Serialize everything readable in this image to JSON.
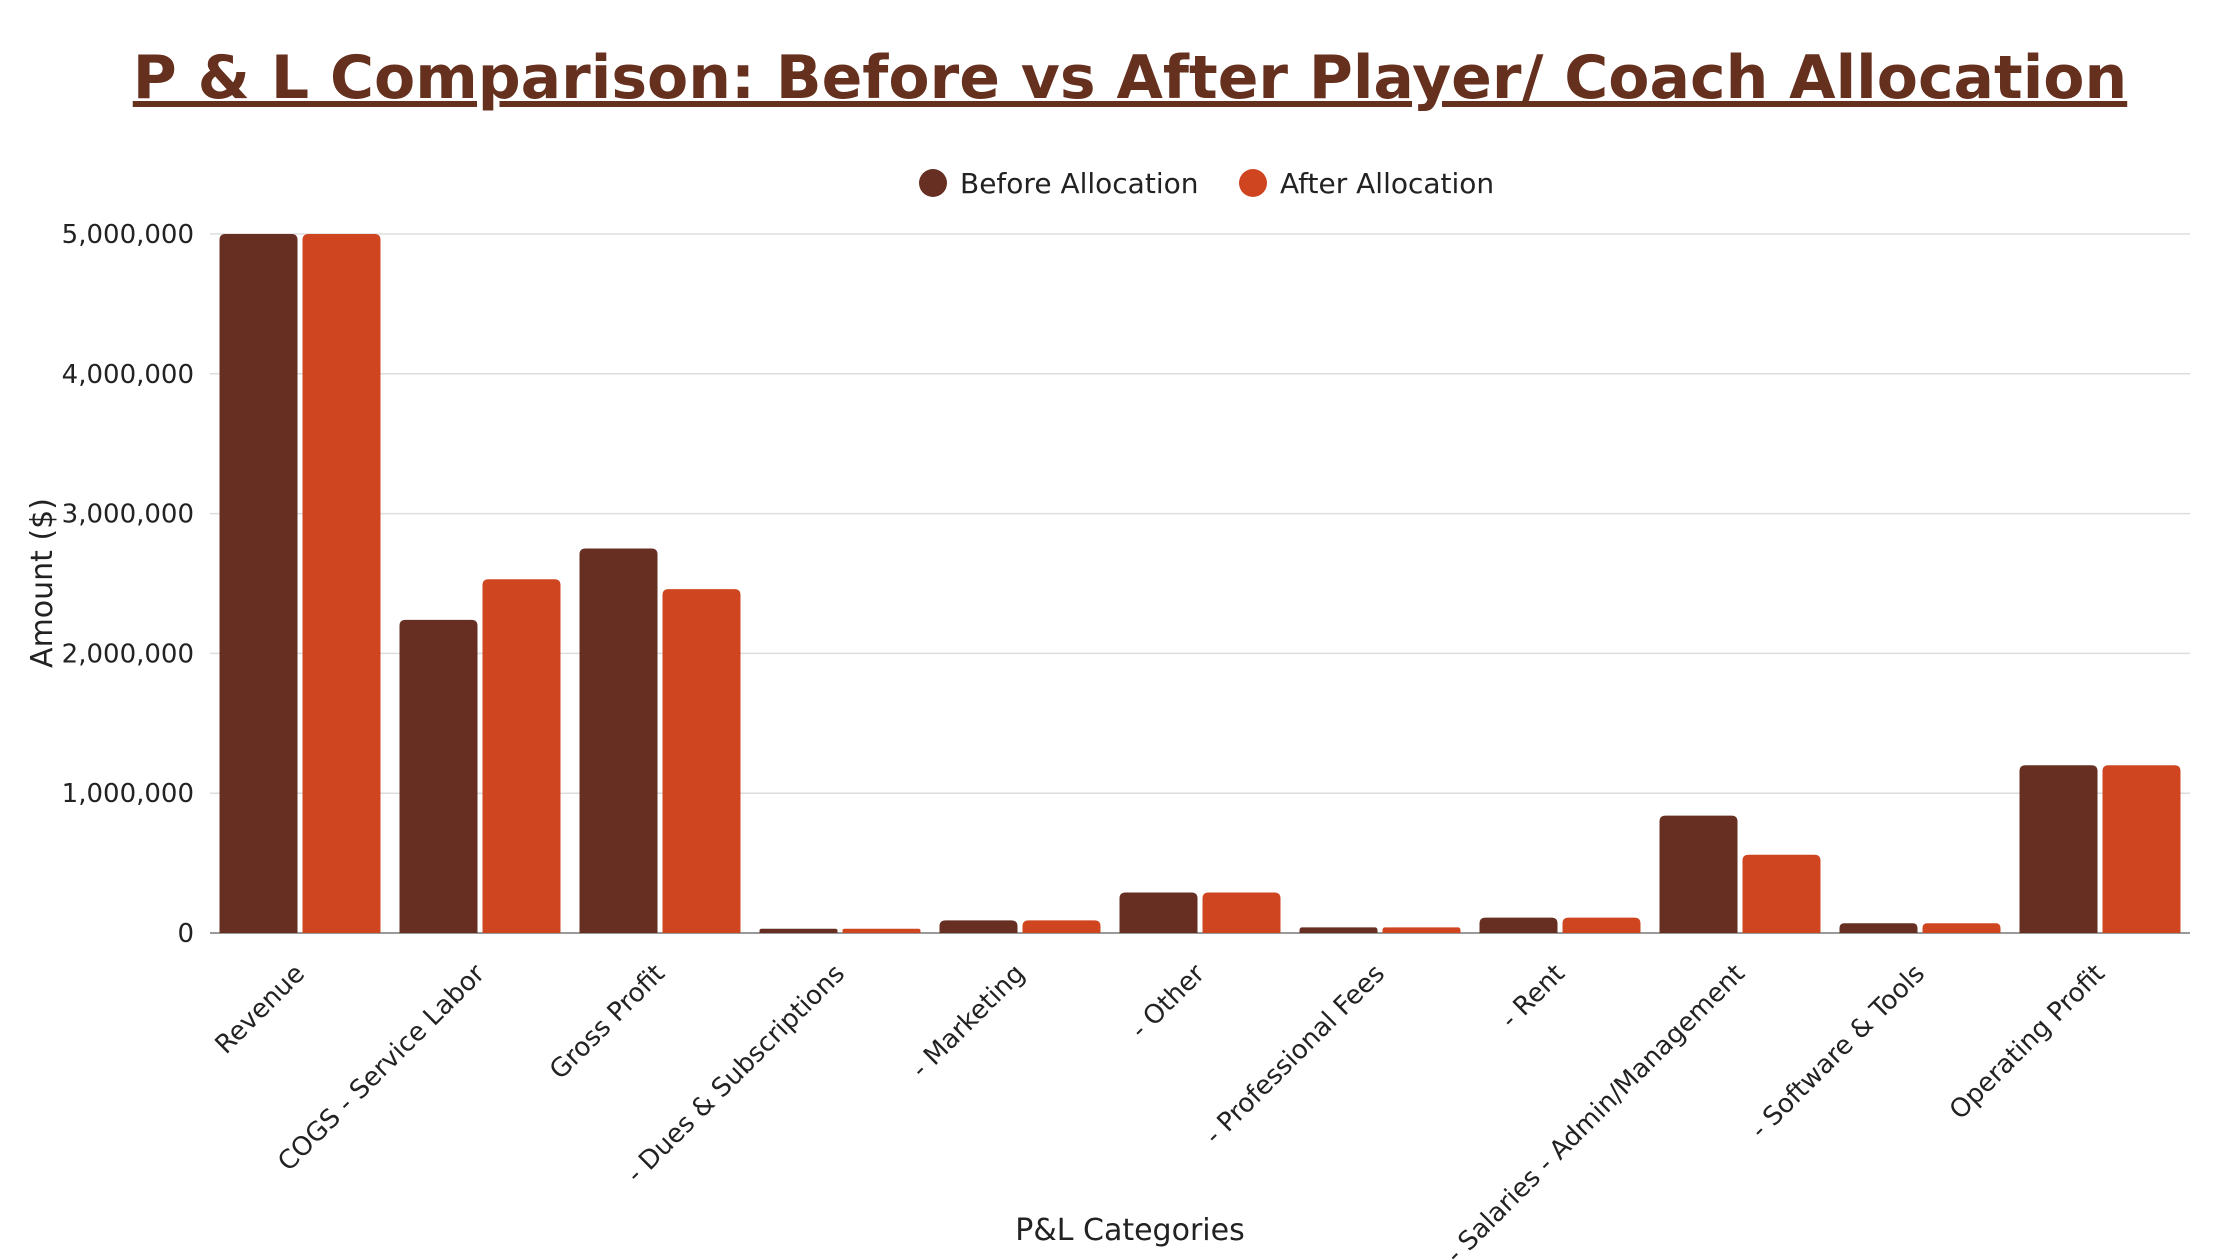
{
  "chart_data": {
    "type": "bar",
    "title": "P & L Comparison: Before vs After Player/ Coach Allocation",
    "xlabel": "P&L Categories",
    "ylabel": "Amount ($)",
    "ylim": [
      0,
      5000000
    ],
    "yticks": [
      "0",
      "1,000,000",
      "2,000,000",
      "3,000,000",
      "4,000,000",
      "5,000,000"
    ],
    "grid": true,
    "legend_position": "top-center",
    "categories": [
      "Revenue",
      "COGS - Service Labor",
      "Gross Profit",
      "- Dues & Subscriptions",
      "- Marketing",
      "- Other",
      "- Professional Fees",
      "- Rent",
      "- Salaries - Admin/Management",
      "- Software & Tools",
      "Operating Profit"
    ],
    "series": [
      {
        "name": "Before Allocation",
        "color": "#662f22",
        "values": [
          5000000,
          2240000,
          2750000,
          30000,
          90000,
          290000,
          40000,
          110000,
          840000,
          70000,
          1200000
        ]
      },
      {
        "name": "After Allocation",
        "color": "#cf4520",
        "values": [
          5000000,
          2530000,
          2460000,
          30000,
          90000,
          290000,
          40000,
          110000,
          560000,
          70000,
          1200000
        ]
      }
    ]
  }
}
